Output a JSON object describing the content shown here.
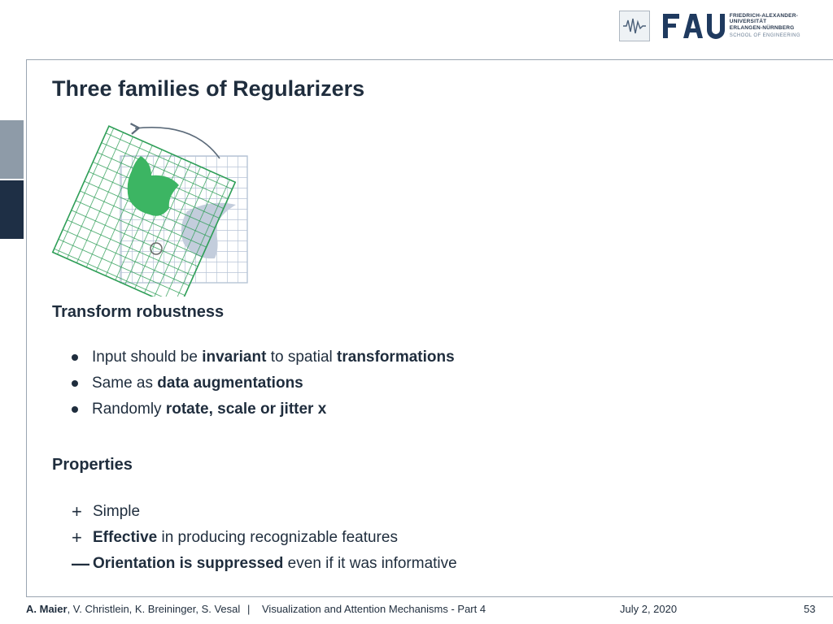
{
  "header": {
    "logo_text": "FAU",
    "university_lines": [
      "FRIEDRICH-ALEXANDER-",
      "UNIVERSITÄT",
      "ERLANGEN-NÜRNBERG"
    ],
    "school": "SCHOOL OF ENGINEERING"
  },
  "slide": {
    "title": "Three families of Regularizers",
    "section1": {
      "heading": "Transform robustness",
      "bullets": [
        {
          "pre": "Input should be ",
          "b1": "invariant",
          "mid": " to spatial ",
          "b2": "transformations",
          "post": ""
        },
        {
          "pre": "Same as ",
          "b1": "data augmentations",
          "mid": "",
          "b2": "",
          "post": ""
        },
        {
          "pre": "Randomly ",
          "b1": "rotate, scale or jitter x",
          "mid": "",
          "b2": "",
          "post": ""
        }
      ]
    },
    "section2": {
      "heading": "Properties",
      "items": [
        {
          "marker": "+",
          "bold": "",
          "text": "Simple"
        },
        {
          "marker": "+",
          "bold": "Effective",
          "text": " in producing recognizable features"
        },
        {
          "marker": "—",
          "bold": "Orientation is suppressed",
          "text": " even if it was informative"
        }
      ]
    }
  },
  "footer": {
    "author_bold": "A. Maier",
    "coauthors": ", V. Christlein, K. Breininger, S. Vesal",
    "separator": "|",
    "lecture": "Visualization and Attention Mechanisms - Part 4",
    "date": "July 2, 2020",
    "page": "53"
  },
  "colors": {
    "grid_green": "#2e9e57",
    "shape_green": "#3cb563",
    "grid_blue": "#b7c4d6",
    "shape_blue": "#c3cddc",
    "text": "#1f2d3d"
  }
}
